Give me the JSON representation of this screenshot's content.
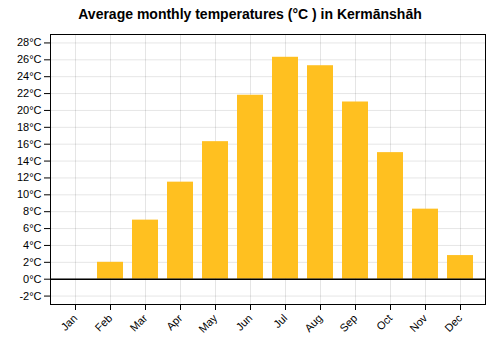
{
  "chart_data": {
    "type": "bar",
    "title": "Average monthly temperatures (°C ) in Kermānshāh",
    "categories": [
      "Jan",
      "Feb",
      "Mar",
      "Apr",
      "May",
      "Jun",
      "Jul",
      "Aug",
      "Sep",
      "Oct",
      "Nov",
      "Dec"
    ],
    "values": [
      0,
      2,
      7,
      11.5,
      16.3,
      21.8,
      26.3,
      25.3,
      21.0,
      15.0,
      8.3,
      2.8
    ],
    "color": "#FFC020",
    "ylim": [
      -3,
      29
    ],
    "yticks": [
      {
        "value": -2,
        "label": "-2°C"
      },
      {
        "value": 0,
        "label": "0°C"
      },
      {
        "value": 2,
        "label": "2°C"
      },
      {
        "value": 4,
        "label": "4°C"
      },
      {
        "value": 6,
        "label": "6°C"
      },
      {
        "value": 8,
        "label": "8°C"
      },
      {
        "value": 10,
        "label": "10°C"
      },
      {
        "value": 12,
        "label": "12°C"
      },
      {
        "value": 14,
        "label": "14°C"
      },
      {
        "value": 16,
        "label": "16°C"
      },
      {
        "value": 18,
        "label": "18°C"
      },
      {
        "value": 20,
        "label": "20°C"
      },
      {
        "value": 22,
        "label": "22°C"
      },
      {
        "value": 24,
        "label": "24°C"
      },
      {
        "value": 26,
        "label": "26°C"
      },
      {
        "value": 28,
        "label": "28°C"
      }
    ],
    "grid": true
  }
}
